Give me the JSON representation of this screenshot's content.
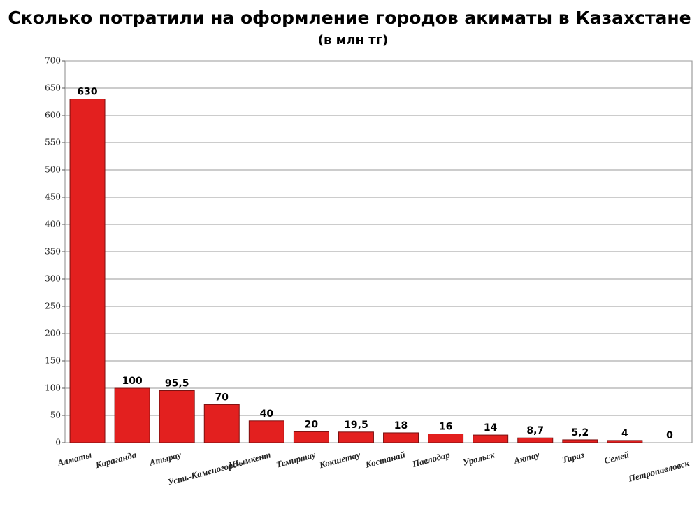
{
  "chart_data": {
    "type": "bar",
    "title": "Сколько потратили на оформление городов акиматы в Казахстане",
    "subtitle": "(в млн тг)",
    "categories": [
      "Алматы",
      "Караганда",
      "Атырау",
      "Усть-Каменогорск",
      "Шымкент",
      "Темиртау",
      "Кокшетау",
      "Костанай",
      "Павлодар",
      "Уральск",
      "Актау",
      "Тараз",
      "Семей",
      "Петропавловск"
    ],
    "values": [
      630,
      100,
      95.5,
      70,
      40,
      20,
      19.5,
      18,
      16,
      14,
      8.7,
      5.2,
      4,
      0
    ],
    "value_labels": [
      "630",
      "100",
      "95,5",
      "70",
      "40",
      "20",
      "19,5",
      "18",
      "16",
      "14",
      "8,7",
      "5,2",
      "4",
      "0"
    ],
    "color": "#e3201f",
    "ylim": [
      0,
      700
    ],
    "yticks": [
      0,
      50,
      100,
      150,
      200,
      250,
      300,
      350,
      400,
      450,
      500,
      550,
      600,
      650,
      700
    ],
    "grid": true
  }
}
